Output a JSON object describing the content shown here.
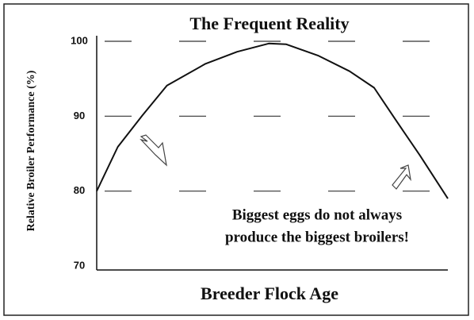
{
  "chart_data": {
    "type": "line",
    "title": "The Frequent Reality",
    "y_label": "Relative Broiler Performance (%)",
    "x_label": "Breeder Flock Age",
    "annotation": [
      "Biggest eggs do not always",
      "produce the biggest broilers!"
    ],
    "x": [
      0,
      6,
      13,
      20,
      31,
      40,
      49,
      54,
      63,
      72,
      79,
      85,
      92,
      100
    ],
    "series": [
      {
        "color": "#111111",
        "values": [
          80,
          85.9,
          90.1,
          94.1,
          97,
          98.6,
          99.7,
          99.6,
          98.1,
          96,
          93.8,
          89.6,
          84.8,
          79
        ]
      }
    ],
    "xlim": [
      0,
      100
    ],
    "ylim": [
      70,
      100
    ],
    "yticks": [
      70,
      80,
      90,
      100
    ],
    "grid": true
  }
}
